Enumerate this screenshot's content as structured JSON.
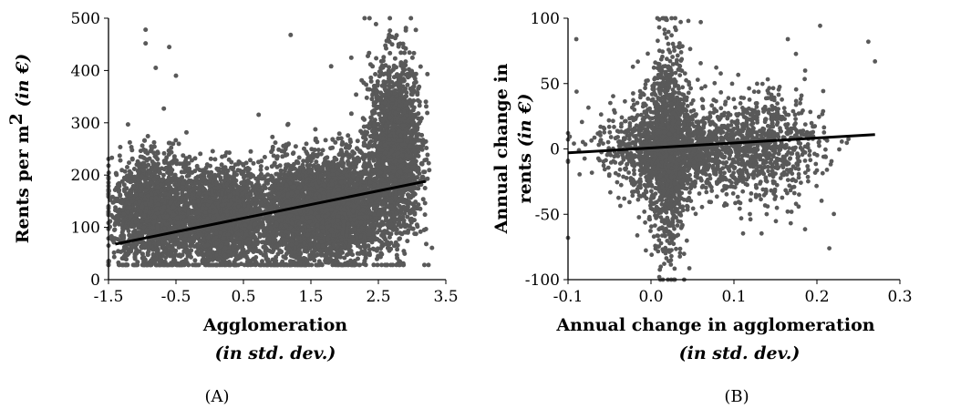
{
  "colors": {
    "points": "#595959",
    "trend": "#000000",
    "axis": "#000000"
  },
  "chart_data": [
    {
      "type": "scatter",
      "panel_label": "(A)",
      "xlabel": "Agglomeration",
      "xlabel_sub": "(in std. dev.)",
      "ylabel_main": "Rents per m",
      "ylabel_sup": "2",
      "ylabel_italic": " (in €)",
      "xlim": [
        -1.5,
        3.5
      ],
      "ylim": [
        0,
        500
      ],
      "xticks": [
        -1.5,
        -0.5,
        0.5,
        1.5,
        2.5,
        3.5
      ],
      "xtick_labels": [
        "-1.5",
        "-0.5",
        "0.5",
        "1.5",
        "2.5",
        "3.5"
      ],
      "yticks": [
        0,
        100,
        200,
        300,
        400,
        500
      ],
      "ytick_labels": [
        "0",
        "100",
        "200",
        "300",
        "400",
        "500"
      ],
      "trendline": {
        "x": [
          -1.4,
          3.2
        ],
        "y": [
          68,
          188
        ]
      },
      "grid": false,
      "legend": "none",
      "point_clusters": [
        {
          "x": [
            -1.4,
            -0.2
          ],
          "y": [
            30,
            230
          ]
        },
        {
          "x": [
            -0.3,
            0.7
          ],
          "y": [
            30,
            200
          ]
        },
        {
          "x": [
            0.7,
            1.9
          ],
          "y": [
            30,
            220
          ]
        },
        {
          "x": [
            1.5,
            2.5
          ],
          "y": [
            50,
            230
          ]
        },
        {
          "x": [
            2.4,
            3.1
          ],
          "y": [
            90,
            400
          ]
        }
      ],
      "notable_points": [
        {
          "x": -0.95,
          "y": 478
        },
        {
          "x": -0.95,
          "y": 452
        },
        {
          "x": -0.6,
          "y": 445
        },
        {
          "x": 1.2,
          "y": 468
        },
        {
          "x": 2.75,
          "y": 462
        },
        {
          "x": -0.8,
          "y": 405
        },
        {
          "x": -0.5,
          "y": 390
        },
        {
          "x": 1.8,
          "y": 408
        },
        {
          "x": 2.8,
          "y": 450
        }
      ]
    },
    {
      "type": "scatter",
      "panel_label": "(B)",
      "xlabel": "Annual change in agglomeration",
      "xlabel_sub": "(in std. dev.)",
      "ylabel_line1": "Annual change in",
      "ylabel_line2": "rents",
      "ylabel_italic": " (in €)",
      "xlim": [
        -0.1,
        0.3
      ],
      "ylim": [
        -100,
        100
      ],
      "xticks": [
        -0.1,
        0.0,
        0.1,
        0.2,
        0.3
      ],
      "xtick_labels": [
        "-0.1",
        "0.0",
        "0.1",
        "0.2",
        "0.3"
      ],
      "yticks": [
        -100,
        -50,
        0,
        50,
        100
      ],
      "ytick_labels": [
        "-100",
        "-50",
        "0",
        "50",
        "100"
      ],
      "trendline": {
        "x": [
          -0.1,
          0.27
        ],
        "y": [
          -3,
          11
        ]
      },
      "grid": false,
      "legend": "none",
      "point_clusters": [
        {
          "x": [
            -0.03,
            0.06
          ],
          "y": [
            -40,
            40
          ]
        },
        {
          "x": [
            -0.06,
            0.14
          ],
          "y": [
            -25,
            25
          ]
        },
        {
          "x": [
            0.0,
            0.04
          ],
          "y": [
            -80,
            80
          ]
        },
        {
          "x": [
            0.05,
            0.2
          ],
          "y": [
            -40,
            40
          ]
        }
      ],
      "notable_points": [
        {
          "x": 0.01,
          "y": 99
        },
        {
          "x": 0.045,
          "y": 98
        },
        {
          "x": 0.06,
          "y": 97
        },
        {
          "x": -0.09,
          "y": 84
        },
        {
          "x": 0.165,
          "y": 84
        },
        {
          "x": 0.262,
          "y": 82
        },
        {
          "x": 0.27,
          "y": 67
        },
        {
          "x": -0.1,
          "y": -68
        },
        {
          "x": 0.215,
          "y": -76
        },
        {
          "x": 0.01,
          "y": -98
        }
      ]
    }
  ]
}
